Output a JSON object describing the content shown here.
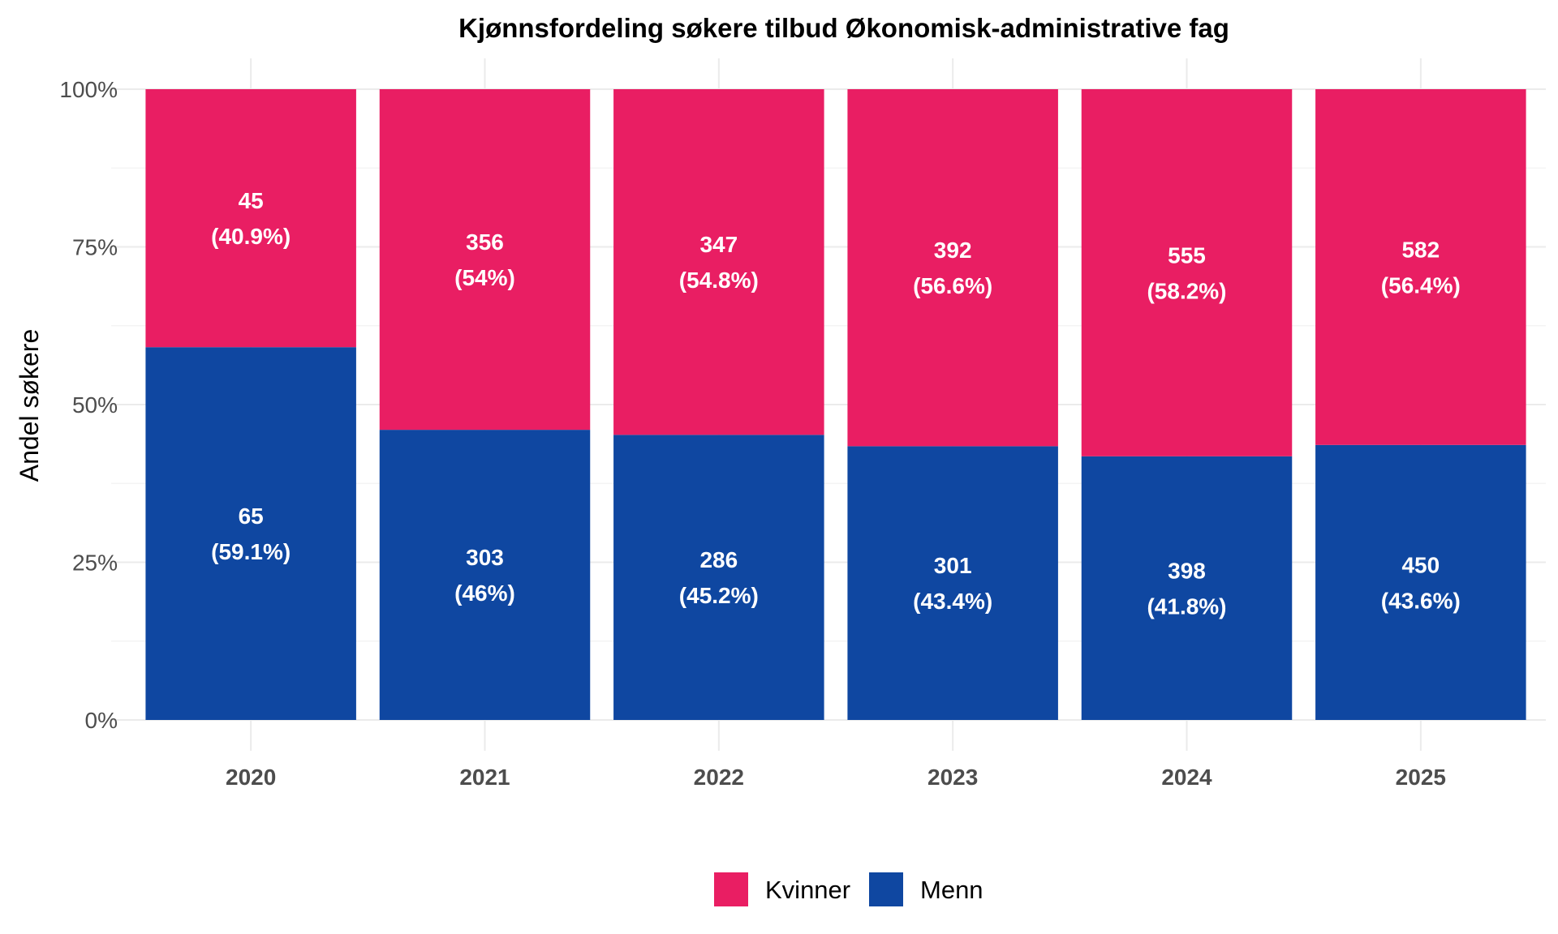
{
  "chart_data": {
    "type": "bar",
    "stacked": true,
    "normalized": true,
    "title": "Kjønnsfordeling søkere tilbud Økonomisk-administrative fag",
    "xlabel": "",
    "ylabel": "Andel søkere",
    "ylim": [
      0,
      1
    ],
    "yticks": [
      "0%",
      "25%",
      "50%",
      "75%",
      "100%"
    ],
    "categories": [
      "2020",
      "2021",
      "2022",
      "2023",
      "2024",
      "2025"
    ],
    "series": [
      {
        "name": "Menn",
        "color": "#0F47A1",
        "counts": [
          65,
          303,
          286,
          301,
          398,
          450
        ],
        "shares": [
          0.591,
          0.46,
          0.452,
          0.434,
          0.418,
          0.436
        ],
        "labels": [
          "(59.1%)",
          "(46%)",
          "(45.2%)",
          "(43.4%)",
          "(41.8%)",
          "(43.6%)"
        ]
      },
      {
        "name": "Kvinner",
        "color": "#E91E63",
        "counts": [
          45,
          356,
          347,
          392,
          555,
          582
        ],
        "shares": [
          0.409,
          0.54,
          0.548,
          0.566,
          0.582,
          0.564
        ],
        "labels": [
          "(40.9%)",
          "(54%)",
          "(54.8%)",
          "(56.6%)",
          "(58.2%)",
          "(56.4%)"
        ]
      }
    ],
    "legend": {
      "position": "bottom",
      "order": [
        "Kvinner",
        "Menn"
      ]
    },
    "grid": true
  }
}
